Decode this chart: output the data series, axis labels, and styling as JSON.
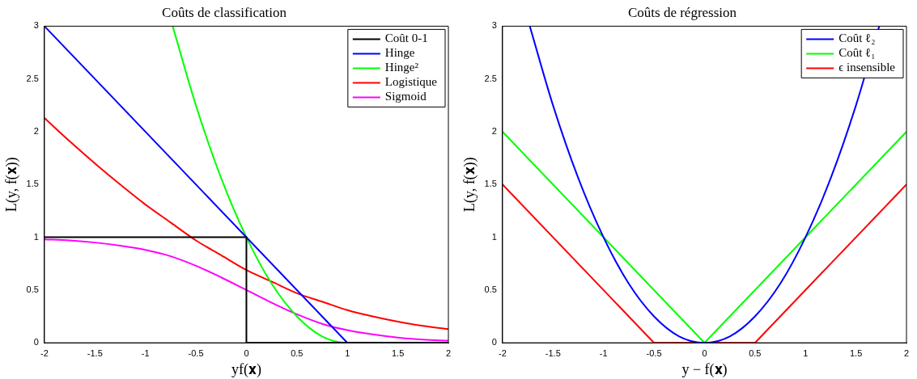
{
  "chart_data": [
    {
      "type": "line",
      "title": "Coûts de classification",
      "xlabel": "yf(𝐱)",
      "ylabel": "L(y, f(𝐱))",
      "xlim": [
        -2,
        2
      ],
      "ylim": [
        0,
        3
      ],
      "xticks": [
        -2,
        -1.5,
        -1,
        -0.5,
        0,
        0.5,
        1,
        1.5,
        2
      ],
      "yticks": [
        0,
        0.5,
        1,
        1.5,
        2,
        2.5,
        3
      ],
      "grid": false,
      "legend": "top right",
      "series": [
        {
          "name": "Coût 0-1",
          "color": "#000000",
          "x": [
            -2,
            0,
            0,
            2
          ],
          "values": [
            1,
            1,
            0,
            0
          ]
        },
        {
          "name": "Hinge",
          "color": "#0000ff",
          "x": [
            -2,
            1,
            2
          ],
          "values": [
            3,
            0,
            0
          ]
        },
        {
          "name": "Hinge²",
          "color": "#00ff00",
          "x": [
            -0.73,
            -0.5,
            -0.25,
            0,
            0.25,
            0.5,
            0.75,
            1,
            2
          ],
          "values": [
            3,
            2.25,
            1.56,
            1,
            0.56,
            0.25,
            0.06,
            0,
            0
          ]
        },
        {
          "name": "Logistique",
          "color": "#ff0000",
          "x": [
            -2,
            -1.75,
            -1.5,
            -1.25,
            -1,
            -0.75,
            -0.5,
            -0.25,
            0,
            0.25,
            0.5,
            0.75,
            1,
            1.25,
            1.5,
            1.75,
            2
          ],
          "values": [
            2.13,
            1.91,
            1.7,
            1.5,
            1.31,
            1.14,
            0.97,
            0.83,
            0.69,
            0.58,
            0.47,
            0.39,
            0.31,
            0.25,
            0.2,
            0.16,
            0.13
          ]
        },
        {
          "name": "Sigmoid",
          "color": "#ff00ff",
          "x": [
            -2,
            -1.75,
            -1.5,
            -1.25,
            -1,
            -0.75,
            -0.5,
            -0.25,
            0,
            0.25,
            0.5,
            0.75,
            1,
            1.25,
            1.5,
            1.75,
            2
          ],
          "values": [
            0.98,
            0.97,
            0.95,
            0.92,
            0.88,
            0.82,
            0.73,
            0.62,
            0.5,
            0.38,
            0.27,
            0.18,
            0.12,
            0.08,
            0.05,
            0.03,
            0.02
          ]
        }
      ]
    },
    {
      "type": "line",
      "title": "Coûts de régression",
      "xlabel": "y − f(𝐱)",
      "ylabel": "L(y, f(𝐱))",
      "xlim": [
        -2,
        2
      ],
      "ylim": [
        0,
        3
      ],
      "xticks": [
        -2,
        -1.5,
        -1,
        -0.5,
        0,
        0.5,
        1,
        1.5,
        2
      ],
      "yticks": [
        0,
        0.5,
        1,
        1.5,
        2,
        2.5,
        3
      ],
      "grid": false,
      "legend": "top right",
      "series": [
        {
          "name": "Coût ℓ₂",
          "color": "#0000ff",
          "x": [
            -1.73,
            -1.5,
            -1.25,
            -1,
            -0.75,
            -0.5,
            -0.25,
            0,
            0.25,
            0.5,
            0.75,
            1,
            1.25,
            1.5,
            1.73
          ],
          "values": [
            3,
            2.25,
            1.56,
            1,
            0.56,
            0.25,
            0.06,
            0,
            0.06,
            0.25,
            0.56,
            1,
            1.56,
            2.25,
            3
          ]
        },
        {
          "name": "Coût ℓ₁",
          "color": "#00ff00",
          "x": [
            -2,
            0,
            2
          ],
          "values": [
            2,
            0,
            2
          ]
        },
        {
          "name": "ϵ insensible",
          "color": "#ff0000",
          "x": [
            -2,
            -0.5,
            0.5,
            2
          ],
          "values": [
            1.5,
            0,
            0,
            1.5
          ]
        }
      ]
    }
  ]
}
